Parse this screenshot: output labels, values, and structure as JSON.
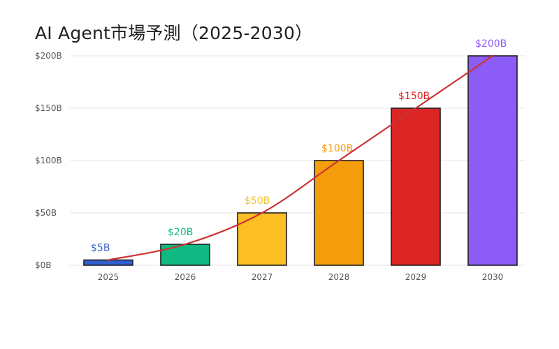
{
  "chart_data": {
    "type": "bar",
    "title": "AI Agent市場予測（2025-2030）",
    "xlabel": "",
    "ylabel": "",
    "categories": [
      "2025",
      "2026",
      "2027",
      "2028",
      "2029",
      "2030"
    ],
    "values": [
      5,
      20,
      50,
      100,
      150,
      200
    ],
    "data_labels": [
      "$5B",
      "$20B",
      "$50B",
      "$100B",
      "$150B",
      "$200B"
    ],
    "ylim": [
      0,
      200
    ],
    "yticks": [
      0,
      50,
      100,
      150,
      200
    ],
    "ytick_labels": [
      "$0B",
      "$50B",
      "$100B",
      "$150B",
      "$200B"
    ],
    "grid": true,
    "legend": "none",
    "bar_colors": [
      "#2f5fd0",
      "#10b981",
      "#fbbf24",
      "#f59e0b",
      "#dc2626",
      "#8b5cf6"
    ],
    "label_colors": [
      "#2f5fd0",
      "#10b981",
      "#f2c230",
      "#f59e0b",
      "#dc2626",
      "#8b5cf6"
    ],
    "trend_line": {
      "type": "line",
      "values": [
        5,
        20,
        50,
        100,
        150,
        200
      ],
      "color": "#cc3333"
    }
  }
}
